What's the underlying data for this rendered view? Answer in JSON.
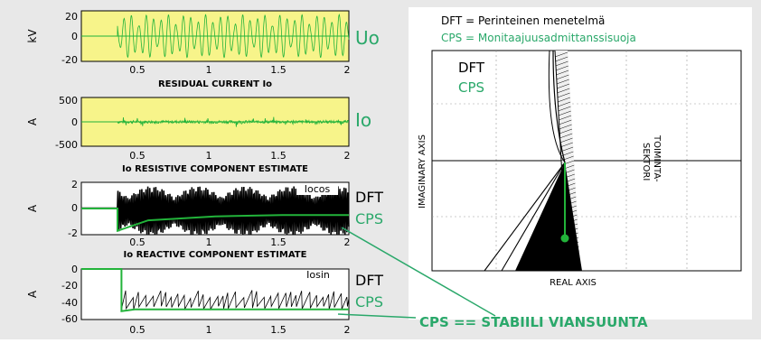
{
  "colors": {
    "background": "#e8e8e8",
    "plot_yellow": "#f7f48a",
    "plot_white": "#ffffff",
    "signal_green": "#22b33a",
    "label_green": "#2aa86a",
    "dft_black": "#000000"
  },
  "side_labels": {
    "uo": "Uo",
    "io": "Io",
    "dft1": "DFT",
    "cps1": "CPS",
    "dft2": "DFT",
    "cps2": "CPS"
  },
  "conclusion": "CPS == STABIILI VIANSUUNTA",
  "chart_data": [
    {
      "type": "line",
      "panel": "Uo",
      "title": "",
      "xlabel": "RESIDUAL CURRENT Io",
      "ylabel": "kV",
      "xlim": [
        0,
        2
      ],
      "ylim": [
        -20,
        20
      ],
      "xticks": [
        "0.5",
        "1",
        "1.5",
        "2"
      ],
      "yticks": [
        "20",
        "0",
        "-20"
      ],
      "background": "yellow",
      "series": [
        {
          "kind": "oscillation",
          "start": 0.27,
          "end": 2,
          "amplitude": 17
        }
      ]
    },
    {
      "type": "line",
      "panel": "Io",
      "title": "",
      "xlabel": "Io RESISTIVE COMPONENT ESTIMATE",
      "ylabel": "A",
      "xlim": [
        0,
        2
      ],
      "ylim": [
        -500,
        500
      ],
      "xticks": [
        "0.5",
        "1",
        "1.5",
        "2"
      ],
      "yticks": [
        "500",
        "0",
        "-500"
      ],
      "background": "yellow",
      "series": [
        {
          "kind": "noise",
          "start": 0.27,
          "end": 2,
          "amplitude": 60
        }
      ]
    },
    {
      "type": "line",
      "panel": "Iocos",
      "title": "",
      "xlabel": "Io REACTIVE COMPONENT ESTIMATE",
      "ylabel": "A",
      "annotation": "Iocos",
      "xlim": [
        0,
        2
      ],
      "ylim": [
        -2,
        2
      ],
      "xticks": [
        "0.5",
        "1",
        "1.5",
        "2"
      ],
      "yticks": [
        "2",
        "0",
        "-2"
      ],
      "background": "white",
      "series": [
        {
          "kind": "dft_oscillation",
          "start": 0.27,
          "end": 2
        },
        {
          "kind": "step",
          "x": [
            0,
            0.27,
            0.27,
            0.5,
            1,
            1.5,
            2
          ],
          "y": [
            0,
            0,
            -1.7,
            -0.9,
            -0.6,
            -0.5,
            -0.5
          ]
        }
      ]
    },
    {
      "type": "line",
      "panel": "Iosin",
      "title": "",
      "xlabel": "",
      "ylabel": "A",
      "annotation": "Iosin",
      "xlim": [
        0,
        2
      ],
      "ylim": [
        -60,
        0
      ],
      "xticks": [
        "0.5",
        "1",
        "1.5",
        "2"
      ],
      "yticks": [
        "0",
        "-20",
        "-40",
        "-60"
      ],
      "background": "white",
      "series": [
        {
          "kind": "dft_sawtooth",
          "start": 0.3,
          "end": 2,
          "low": -48,
          "high": -30
        },
        {
          "kind": "step",
          "x": [
            0,
            0.3,
            0.3,
            0.4,
            2
          ],
          "y": [
            0,
            0,
            -50,
            -48,
            -48
          ]
        }
      ]
    },
    {
      "type": "scatter",
      "panel": "complex_plane",
      "legend": [
        "DFT = Perinteinen menetelmä",
        "CPS = Monitaajuusadmittanssisuoja"
      ],
      "legend_inside": [
        "DFT",
        "CPS"
      ],
      "xlabel": "REAL AXIS",
      "ylabel": "IMAGINARY AXIS",
      "sector_label": [
        "TOIMINTA-",
        "SEKTORI"
      ],
      "grid": true
    }
  ]
}
